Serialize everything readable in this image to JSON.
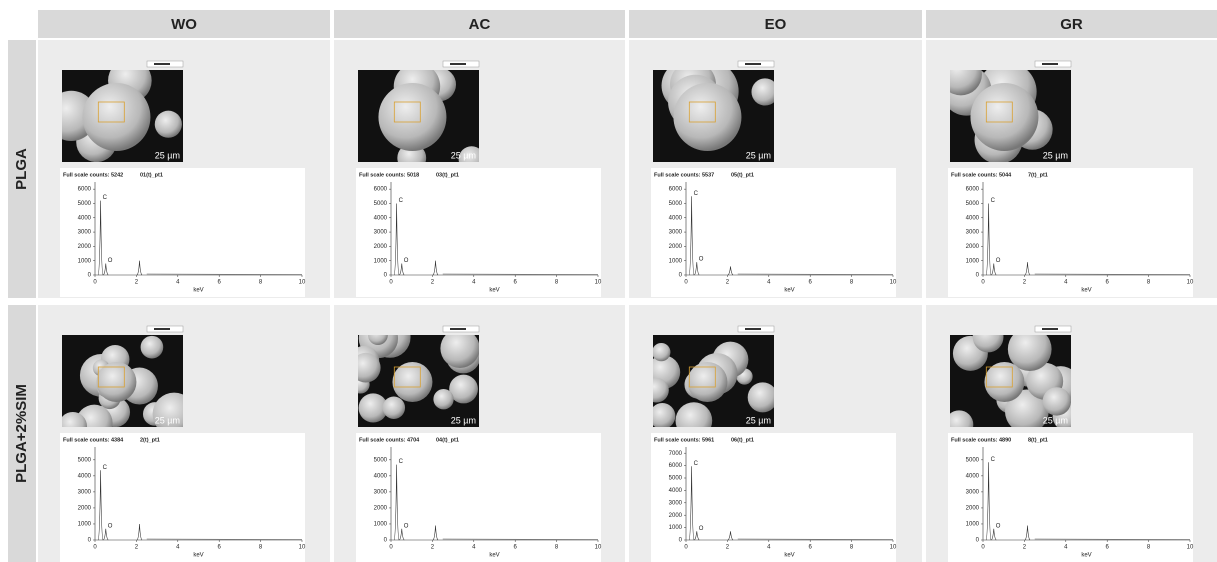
{
  "columns": [
    "WO",
    "AC",
    "EO",
    "GR"
  ],
  "rows": [
    {
      "label": "PLGA",
      "cells": [
        {
          "scale_label": "25 µm",
          "spectrum": {
            "counts_label": "Full scale counts: 5242",
            "file": "01(t)_pt1",
            "xlabel": "keV",
            "xlim": [
              0,
              10
            ],
            "xticks": [
              0,
              2,
              4,
              6,
              8,
              10
            ],
            "ylim": [
              0,
              6500
            ],
            "yticks": [
              0,
              1000,
              2000,
              3000,
              4000,
              5000,
              6000
            ],
            "peaks": [
              {
                "label": "C",
                "x": 0.27,
                "y": 5200
              },
              {
                "label": "O",
                "x": 0.52,
                "y": 800
              },
              {
                "x": 2.15,
                "y": 1000
              }
            ]
          }
        },
        {
          "scale_label": "25 µm",
          "spectrum": {
            "counts_label": "Full scale counts: 5018",
            "file": "03(t)_pt1",
            "xlabel": "keV",
            "xlim": [
              0,
              10
            ],
            "xticks": [
              0,
              2,
              4,
              6,
              8,
              10
            ],
            "ylim": [
              0,
              6500
            ],
            "yticks": [
              0,
              1000,
              2000,
              3000,
              4000,
              5000,
              6000
            ],
            "peaks": [
              {
                "label": "C",
                "x": 0.27,
                "y": 5000
              },
              {
                "label": "O",
                "x": 0.52,
                "y": 800
              },
              {
                "x": 2.15,
                "y": 1000
              }
            ]
          }
        },
        {
          "scale_label": "25 µm",
          "spectrum": {
            "counts_label": "Full scale counts: 5537",
            "file": "05(t)_pt1",
            "xlabel": "keV",
            "xlim": [
              0,
              10
            ],
            "xticks": [
              0,
              2,
              4,
              6,
              8,
              10
            ],
            "ylim": [
              0,
              6500
            ],
            "yticks": [
              0,
              1000,
              2000,
              3000,
              4000,
              5000,
              6000
            ],
            "peaks": [
              {
                "label": "C",
                "x": 0.27,
                "y": 5500
              },
              {
                "label": "O",
                "x": 0.52,
                "y": 900
              },
              {
                "x": 2.15,
                "y": 600
              }
            ]
          }
        },
        {
          "scale_label": "25 µm",
          "spectrum": {
            "counts_label": "Full scale counts: 5044",
            "file": "7(t)_pt1",
            "xlabel": "keV",
            "xlim": [
              0,
              10
            ],
            "xticks": [
              0,
              2,
              4,
              6,
              8,
              10
            ],
            "ylim": [
              0,
              6500
            ],
            "yticks": [
              0,
              1000,
              2000,
              3000,
              4000,
              5000,
              6000
            ],
            "peaks": [
              {
                "label": "C",
                "x": 0.27,
                "y": 5000
              },
              {
                "label": "O",
                "x": 0.52,
                "y": 800
              },
              {
                "x": 2.15,
                "y": 900
              }
            ]
          }
        }
      ]
    },
    {
      "label": "PLGA+2%SIM",
      "cells": [
        {
          "scale_label": "25 µm",
          "spectrum": {
            "counts_label": "Full scale counts: 4384",
            "file": "2(t)_pt1",
            "xlabel": "keV",
            "xlim": [
              0,
              10
            ],
            "xticks": [
              0,
              2,
              4,
              6,
              8,
              10
            ],
            "ylim": [
              0,
              5800
            ],
            "yticks": [
              0,
              1000,
              2000,
              3000,
              4000,
              5000
            ],
            "peaks": [
              {
                "label": "C",
                "x": 0.27,
                "y": 4350
              },
              {
                "label": "O",
                "x": 0.52,
                "y": 700
              },
              {
                "x": 2.15,
                "y": 1000
              }
            ]
          }
        },
        {
          "scale_label": "25 µm",
          "spectrum": {
            "counts_label": "Full scale counts: 4704",
            "file": "04(t)_pt1",
            "xlabel": "keV",
            "xlim": [
              0,
              10
            ],
            "xticks": [
              0,
              2,
              4,
              6,
              8,
              10
            ],
            "ylim": [
              0,
              5800
            ],
            "yticks": [
              0,
              1000,
              2000,
              3000,
              4000,
              5000
            ],
            "peaks": [
              {
                "label": "C",
                "x": 0.27,
                "y": 4700
              },
              {
                "label": "O",
                "x": 0.52,
                "y": 700
              },
              {
                "x": 2.15,
                "y": 900
              }
            ]
          }
        },
        {
          "scale_label": "25 µm",
          "spectrum": {
            "counts_label": "Full scale counts: 5961",
            "file": "06(t)_pt1",
            "xlabel": "keV",
            "xlim": [
              0,
              10
            ],
            "xticks": [
              0,
              2,
              4,
              6,
              8,
              10
            ],
            "ylim": [
              0,
              7500
            ],
            "yticks": [
              0,
              1000,
              2000,
              3000,
              4000,
              5000,
              6000,
              7000
            ],
            "peaks": [
              {
                "label": "C",
                "x": 0.27,
                "y": 5950
              },
              {
                "label": "O",
                "x": 0.52,
                "y": 700
              },
              {
                "x": 2.15,
                "y": 700
              }
            ]
          }
        },
        {
          "scale_label": "25 µm",
          "spectrum": {
            "counts_label": "Full scale counts: 4890",
            "file": "8(t)_pt1",
            "xlabel": "keV",
            "xlim": [
              0,
              10
            ],
            "xticks": [
              0,
              2,
              4,
              6,
              8,
              10
            ],
            "ylim": [
              0,
              5800
            ],
            "yticks": [
              0,
              1000,
              2000,
              3000,
              4000,
              5000
            ],
            "peaks": [
              {
                "label": "C",
                "x": 0.27,
                "y": 4850
              },
              {
                "label": "O",
                "x": 0.52,
                "y": 700
              },
              {
                "x": 2.15,
                "y": 900
              }
            ]
          }
        }
      ]
    }
  ]
}
